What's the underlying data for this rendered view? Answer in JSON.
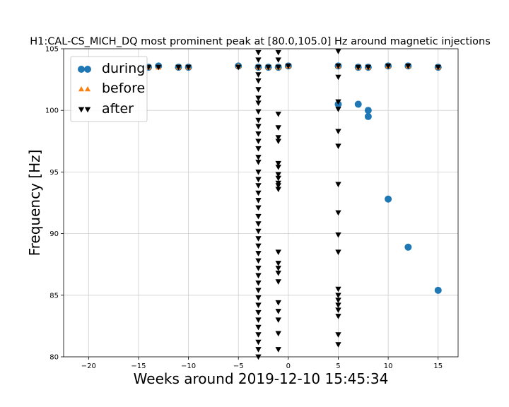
{
  "chart_data": {
    "type": "scatter",
    "title": "H1:CAL-CS_MICH_DQ most prominent peak at [80.0,105.0] Hz around magnetic injections",
    "xlabel": "Weeks around 2019-12-10 15:45:34",
    "ylabel": "Frequency [Hz]",
    "xlim": [
      -22.5,
      17
    ],
    "ylim": [
      80,
      105
    ],
    "xticks": [
      -20,
      -15,
      -10,
      -5,
      0,
      5,
      10,
      15
    ],
    "yticks": [
      80,
      85,
      90,
      95,
      100,
      105
    ],
    "grid": true,
    "legend": "top-left",
    "colors": {
      "during": "#1f77b4",
      "before": "#ff7f0e",
      "after": "#000000"
    },
    "series": [
      {
        "name": "during",
        "marker": "circle",
        "points": [
          [
            -14,
            103.5
          ],
          [
            -13,
            103.6
          ],
          [
            -11,
            103.5
          ],
          [
            -10,
            103.5
          ],
          [
            -5,
            103.6
          ],
          [
            -3,
            103.5
          ],
          [
            -2,
            103.5
          ],
          [
            -1,
            103.5
          ],
          [
            0,
            103.6
          ],
          [
            5,
            103.6
          ],
          [
            5,
            100.5
          ],
          [
            7,
            100.5
          ],
          [
            7,
            103.5
          ],
          [
            8,
            100.0
          ],
          [
            8,
            99.5
          ],
          [
            8,
            103.5
          ],
          [
            10,
            103.6
          ],
          [
            10,
            92.8
          ],
          [
            12,
            103.6
          ],
          [
            12,
            88.9
          ],
          [
            15,
            103.5
          ],
          [
            15,
            85.4
          ]
        ]
      },
      {
        "name": "before",
        "marker": "triangle-up",
        "points": [
          [
            -14,
            103.5
          ],
          [
            -13,
            103.5
          ],
          [
            -11,
            103.5
          ],
          [
            -10,
            103.5
          ],
          [
            -5,
            103.6
          ],
          [
            -3,
            103.5
          ],
          [
            -2,
            103.5
          ],
          [
            -1,
            103.5
          ],
          [
            0,
            103.6
          ],
          [
            5,
            103.6
          ],
          [
            7,
            103.5
          ],
          [
            8,
            103.5
          ],
          [
            10,
            103.6
          ],
          [
            12,
            103.6
          ],
          [
            15,
            103.5
          ]
        ]
      },
      {
        "name": "after",
        "marker": "triangle-down",
        "points": [
          [
            -14,
            103.5
          ],
          [
            -13,
            103.5
          ],
          [
            -11,
            103.5
          ],
          [
            -10,
            103.5
          ],
          [
            -5,
            103.5
          ],
          [
            -3,
            104.7
          ],
          [
            -3,
            104.1
          ],
          [
            -3,
            103.5
          ],
          [
            -3,
            102.9
          ],
          [
            -3,
            102.4
          ],
          [
            -3,
            101.7
          ],
          [
            -3,
            101.0
          ],
          [
            -3,
            100.6
          ],
          [
            -3,
            99.9
          ],
          [
            -3,
            99.2
          ],
          [
            -3,
            98.7
          ],
          [
            -3,
            98.1
          ],
          [
            -3,
            97.5
          ],
          [
            -3,
            96.9
          ],
          [
            -3,
            96.2
          ],
          [
            -3,
            95.8
          ],
          [
            -3,
            95.0
          ],
          [
            -3,
            94.4
          ],
          [
            -3,
            93.9
          ],
          [
            -3,
            93.3
          ],
          [
            -3,
            92.7
          ],
          [
            -3,
            92.1
          ],
          [
            -3,
            91.4
          ],
          [
            -3,
            90.8
          ],
          [
            -3,
            90.2
          ],
          [
            -3,
            89.6
          ],
          [
            -3,
            89.0
          ],
          [
            -3,
            88.4
          ],
          [
            -3,
            87.8
          ],
          [
            -3,
            87.2
          ],
          [
            -3,
            86.6
          ],
          [
            -3,
            86.0
          ],
          [
            -3,
            85.4
          ],
          [
            -3,
            84.8
          ],
          [
            -3,
            84.2
          ],
          [
            -3,
            83.6
          ],
          [
            -3,
            83.0
          ],
          [
            -3,
            82.4
          ],
          [
            -3,
            81.8
          ],
          [
            -3,
            81.2
          ],
          [
            -3,
            80.6
          ],
          [
            -3,
            80.0
          ],
          [
            -2,
            103.5
          ],
          [
            -1,
            104.7
          ],
          [
            -1,
            104.1
          ],
          [
            -1,
            103.5
          ],
          [
            -1,
            99.7
          ],
          [
            -1,
            98.6
          ],
          [
            -1,
            97.8
          ],
          [
            -1,
            97.5
          ],
          [
            -1,
            95.7
          ],
          [
            -1,
            95.4
          ],
          [
            -1,
            94.8
          ],
          [
            -1,
            94.5
          ],
          [
            -1,
            94.1
          ],
          [
            -1,
            93.9
          ],
          [
            -1,
            93.6
          ],
          [
            -1,
            88.5
          ],
          [
            -1,
            87.6
          ],
          [
            -1,
            87.2
          ],
          [
            -1,
            86.8
          ],
          [
            -1,
            86.1
          ],
          [
            -1,
            84.4
          ],
          [
            -1,
            83.7
          ],
          [
            -1,
            83.0
          ],
          [
            -1,
            81.9
          ],
          [
            -1,
            80.6
          ],
          [
            0,
            103.6
          ],
          [
            5,
            104.8
          ],
          [
            5,
            103.6
          ],
          [
            5,
            102.7
          ],
          [
            5,
            100.7
          ],
          [
            5,
            100.1
          ],
          [
            5,
            98.3
          ],
          [
            5,
            97.1
          ],
          [
            5,
            94.0
          ],
          [
            5,
            91.7
          ],
          [
            5,
            89.9
          ],
          [
            5,
            88.5
          ],
          [
            5,
            85.5
          ],
          [
            5,
            85.0
          ],
          [
            5,
            84.6
          ],
          [
            5,
            84.2
          ],
          [
            5,
            83.8
          ],
          [
            5,
            83.3
          ],
          [
            5,
            81.8
          ],
          [
            5,
            81.0
          ],
          [
            7,
            103.5
          ],
          [
            8,
            103.5
          ],
          [
            10,
            103.6
          ],
          [
            12,
            103.6
          ],
          [
            15,
            103.5
          ]
        ]
      }
    ]
  }
}
